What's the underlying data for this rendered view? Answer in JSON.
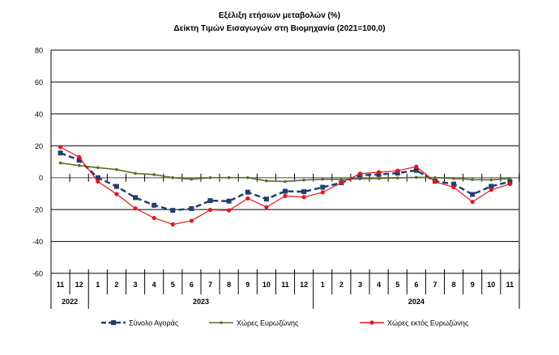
{
  "chart_data": {
    "type": "line",
    "title": "Εξέλιξη ετήσιων μεταβολών (%)",
    "subtitle": "Δείκτη Τιμών Εισαγωγών στη Βιομηχανία (2021=100,0)",
    "xlabel": "",
    "ylabel": "",
    "ylim": [
      -60,
      80
    ],
    "yticks": [
      "80",
      "60",
      "40",
      "20",
      "0",
      "-20",
      "-40",
      "-60"
    ],
    "ytick_values": [
      80,
      60,
      40,
      20,
      0,
      -20,
      -40,
      -60
    ],
    "grid": "horizontal",
    "legend_position": "bottom",
    "categories": [
      "11",
      "12",
      "1",
      "2",
      "3",
      "4",
      "5",
      "6",
      "7",
      "8",
      "9",
      "10",
      "11",
      "12",
      "1",
      "2",
      "3",
      "4",
      "5",
      "6",
      "7",
      "8",
      "9",
      "10",
      "11"
    ],
    "years": [
      {
        "label": "2022",
        "span": 2
      },
      {
        "label": "2023",
        "span": 12
      },
      {
        "label": "2024",
        "span": 11
      }
    ],
    "series": [
      {
        "name": "Σύνολο Αγοράς",
        "color": "#1f3f73",
        "style": "dashed",
        "marker": "square",
        "values": [
          15.5,
          11,
          0,
          -5.5,
          -12.5,
          -17.3,
          -20.5,
          -19.4,
          -14.4,
          -14.7,
          -9.1,
          -13.4,
          -8.5,
          -8.8,
          -6,
          -3.2,
          1.5,
          2,
          2.9,
          4.6,
          -2.2,
          -4,
          -10.5,
          -5.4,
          -2.5
        ]
      },
      {
        "name": "Χώρες Ευρωζώνης",
        "color": "#5a6e2a",
        "style": "solid",
        "marker": "diamond",
        "values": [
          9.2,
          7.6,
          6.3,
          5.1,
          2.7,
          1.9,
          0,
          -1,
          0,
          0,
          0,
          -2,
          -2.4,
          -1.5,
          -1,
          -1,
          -0.7,
          -0.5,
          -0.2,
          0.2,
          0,
          -0.5,
          -1.2,
          -1.4,
          -0.5
        ]
      },
      {
        "name": "Χώρες εκτός Ευρωζώνης",
        "color": "#e8141c",
        "style": "solid",
        "marker": "circle",
        "values": [
          19.2,
          12.9,
          -2.4,
          -10.3,
          -19.3,
          -25.3,
          -29.3,
          -27,
          -20.2,
          -20.5,
          -13,
          -18.5,
          -11.5,
          -12.2,
          -9.2,
          -3.2,
          2.5,
          3.4,
          4.4,
          6.9,
          -2.5,
          -6,
          -15.2,
          -7.6,
          -4
        ]
      }
    ]
  }
}
